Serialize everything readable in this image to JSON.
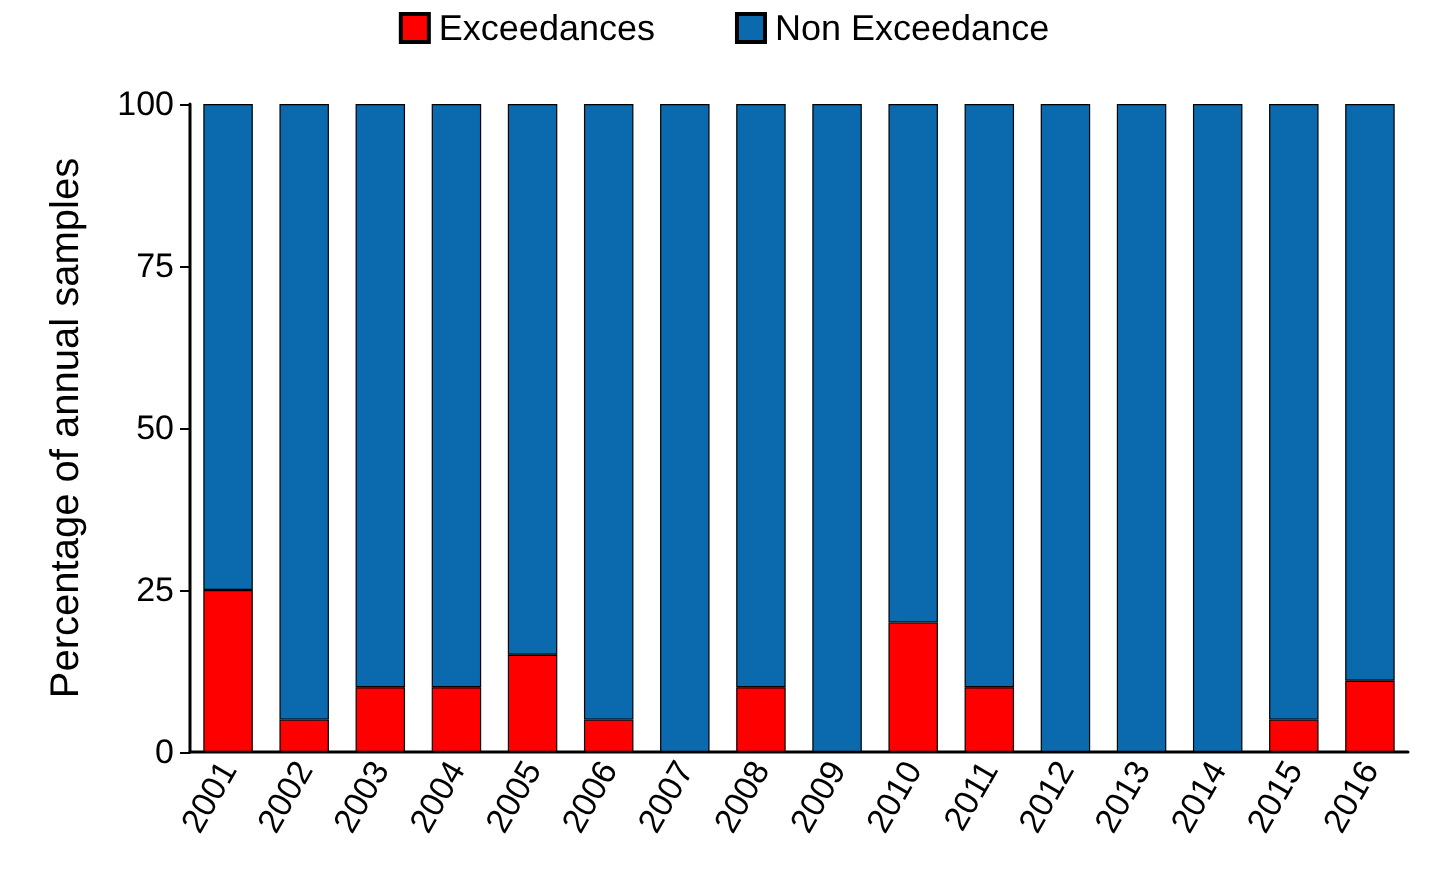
{
  "chart_data": {
    "type": "bar",
    "stacked": true,
    "ylabel": "Percentage of annual samples",
    "categories": [
      "2001",
      "2002",
      "2003",
      "2004",
      "2005",
      "2006",
      "2007",
      "2008",
      "2009",
      "2010",
      "2011",
      "2012",
      "2013",
      "2014",
      "2015",
      "2016"
    ],
    "series": [
      {
        "name": "Exceedances",
        "color": "#ff0000",
        "values": [
          25,
          5,
          10,
          10,
          15,
          5,
          0,
          10,
          0,
          20,
          10,
          0,
          0,
          0,
          5,
          11
        ]
      },
      {
        "name": "Non Exceedance",
        "color": "#0b69ad",
        "values": [
          75,
          95,
          90,
          90,
          85,
          95,
          100,
          90,
          100,
          80,
          90,
          100,
          100,
          100,
          95,
          89
        ]
      }
    ],
    "ylim": [
      0,
      100
    ],
    "yticks": [
      0,
      25,
      50,
      75,
      100
    ],
    "grid": false,
    "legend": "top"
  }
}
